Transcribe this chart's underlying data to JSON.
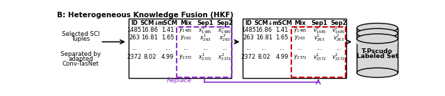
{
  "title": "B: Heterogeneous Knowledge Fusion (HKF)",
  "title_fontsize": 7.5,
  "left_labels": [
    [
      "Selected SCI",
      "Tuples"
    ],
    [
      "Separated by",
      "adapted",
      "Conv-TasNet"
    ]
  ],
  "table1_headers": [
    "ID",
    "SCM↓",
    "mSCM",
    "Mix",
    "Sep1",
    "Sep2"
  ],
  "table1_rows": [
    [
      "1485",
      "16.86",
      "1.41",
      "y_{1485}",
      "x^1_{1485}",
      "x^2_{1485}"
    ],
    [
      "263",
      "16.81",
      "1.65",
      "y_{263}",
      "x^1_{263}",
      "x^2_{263}"
    ],
    [
      "...",
      "...",
      "...",
      "...",
      "...",
      "..."
    ],
    [
      "2372",
      "8.02",
      "4.99",
      "y_{2372}",
      "x^1_{2372}",
      "x^2_{2372}"
    ]
  ],
  "table2_headers": [
    "ID",
    "SCM↓",
    "mSCM",
    "Mix",
    "Sep1",
    "Sep2"
  ],
  "table2_rows": [
    [
      "1485",
      "16.86",
      "1.41",
      "y_{1485}",
      "v^1_{1485}",
      "v^2_{1485}"
    ],
    [
      "263",
      "16.81",
      "1.65",
      "y_{263}",
      "v^1_{263}",
      "v^2_{263}"
    ],
    [
      "...",
      "...",
      "...",
      "...",
      "...",
      "..."
    ],
    [
      "2372",
      "8.02",
      "4.99",
      "y_{2372}",
      "v^1_{2372}",
      "v^2_{2372}"
    ]
  ],
  "replace_label": "Replace",
  "cylinder_label1": "T-Pscudo",
  "cylinder_label2": "Labeled Set",
  "purple": "#8B2FC9",
  "red": "#CC0000",
  "black": "#000000",
  "gray": "#AAAAAA",
  "bg": "#FFFFFF"
}
